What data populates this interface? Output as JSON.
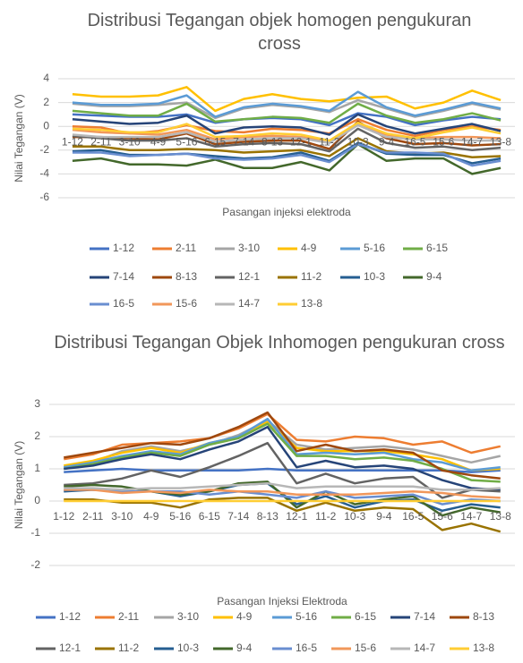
{
  "chart_data": [
    {
      "type": "line",
      "title": "Distribusi Tegangan objek homogen pengukuran cross",
      "xlabel": "Pasangan injeksi elektroda",
      "ylabel": "Nilai Tegangan (V)",
      "grid": true,
      "categories": [
        "1-12",
        "2-11",
        "3-10",
        "4-9",
        "5-16",
        "6-15",
        "7-14",
        "8-13",
        "12-1",
        "11-2",
        "10-3",
        "9-4",
        "16-5",
        "15-6",
        "14-7",
        "13-8"
      ],
      "ylim": [
        -6,
        4
      ],
      "yticks": [
        -6,
        -4,
        -2,
        0,
        2,
        4
      ],
      "series": [
        {
          "name": "1-12",
          "color": "#4472c4",
          "values": [
            1.0,
            0.9,
            0.8,
            0.8,
            1.0,
            0.3,
            0.6,
            0.7,
            0.6,
            0.1,
            1.1,
            0.8,
            0.1,
            0.5,
            0.8,
            0.6
          ]
        },
        {
          "name": "2-11",
          "color": "#ed7d31",
          "values": [
            0.0,
            -0.1,
            -0.6,
            -0.4,
            0.1,
            -0.4,
            -0.5,
            -0.2,
            -0.3,
            -0.6,
            0.6,
            -0.3,
            -0.8,
            -0.3,
            0.0,
            -0.3
          ]
        },
        {
          "name": "3-10",
          "color": "#a5a5a5",
          "values": [
            1.9,
            1.7,
            1.7,
            1.8,
            2.0,
            0.7,
            1.5,
            1.8,
            1.6,
            1.2,
            2.2,
            1.5,
            0.8,
            1.3,
            1.9,
            1.4
          ]
        },
        {
          "name": "4-9",
          "color": "#ffc000",
          "values": [
            2.7,
            2.5,
            2.5,
            2.6,
            3.3,
            1.3,
            2.3,
            2.7,
            2.3,
            2.1,
            2.4,
            2.5,
            1.5,
            2.0,
            3.0,
            2.2
          ]
        },
        {
          "name": "5-16",
          "color": "#5b9bd5",
          "values": [
            2.0,
            1.8,
            1.8,
            1.9,
            2.6,
            0.8,
            1.6,
            1.9,
            1.7,
            1.3,
            2.9,
            1.6,
            0.9,
            1.4,
            2.0,
            1.5
          ]
        },
        {
          "name": "6-15",
          "color": "#70ad47",
          "values": [
            1.3,
            1.1,
            0.9,
            0.9,
            1.9,
            0.4,
            0.6,
            0.8,
            0.7,
            0.3,
            1.9,
            0.9,
            0.3,
            0.6,
            1.1,
            0.5
          ]
        },
        {
          "name": "7-14",
          "color": "#264478",
          "values": [
            0.6,
            0.4,
            0.2,
            0.3,
            0.9,
            -0.6,
            -0.1,
            0.0,
            -0.1,
            -0.7,
            1.0,
            0.0,
            -0.6,
            -0.2,
            0.2,
            -0.4
          ]
        },
        {
          "name": "8-13",
          "color": "#9e480e",
          "values": [
            -0.9,
            -0.9,
            -1.0,
            -1.1,
            -0.6,
            -1.5,
            -1.3,
            -1.2,
            -1.2,
            -1.9,
            0.4,
            -1.0,
            -1.5,
            -1.4,
            -1.6,
            -1.5
          ]
        },
        {
          "name": "12-1",
          "color": "#636363",
          "values": [
            -0.8,
            -1.0,
            -1.2,
            -1.2,
            -1.0,
            -1.7,
            -1.5,
            -1.4,
            -1.5,
            -2.1,
            -0.2,
            -1.4,
            -1.8,
            -1.7,
            -2.0,
            -1.8
          ]
        },
        {
          "name": "11-2",
          "color": "#997300",
          "values": [
            -1.7,
            -1.7,
            -2.0,
            -2.0,
            -1.9,
            -2.0,
            -2.2,
            -2.1,
            -2.0,
            -2.5,
            -1.0,
            -2.1,
            -2.3,
            -2.2,
            -2.6,
            -2.5
          ]
        },
        {
          "name": "10-3",
          "color": "#255e91",
          "values": [
            -2.1,
            -2.0,
            -2.4,
            -2.4,
            -2.3,
            -2.5,
            -2.7,
            -2.6,
            -2.2,
            -2.9,
            -1.4,
            -2.3,
            -2.4,
            -2.4,
            -3.1,
            -2.7
          ]
        },
        {
          "name": "9-4",
          "color": "#43682b",
          "values": [
            -2.9,
            -2.7,
            -3.2,
            -3.2,
            -3.3,
            -2.8,
            -3.5,
            -3.5,
            -3.0,
            -3.7,
            -1.5,
            -2.9,
            -2.7,
            -2.7,
            -4.0,
            -3.5
          ]
        },
        {
          "name": "16-5",
          "color": "#698ed0",
          "values": [
            -2.2,
            -2.2,
            -2.5,
            -2.4,
            -2.3,
            -2.7,
            -2.8,
            -2.7,
            -2.4,
            -3.0,
            -1.5,
            -2.2,
            -2.2,
            -2.3,
            -3.3,
            -2.9
          ]
        },
        {
          "name": "15-6",
          "color": "#f1975a",
          "values": [
            -0.3,
            -0.5,
            -0.6,
            -0.7,
            -0.3,
            -1.1,
            -0.9,
            -0.8,
            -0.9,
            -1.2,
            0.2,
            -0.7,
            -1.0,
            -0.9,
            -0.9,
            -1.0
          ]
        },
        {
          "name": "14-7",
          "color": "#b7b7b7",
          "values": [
            -0.7,
            -0.9,
            -0.9,
            -0.9,
            -0.5,
            -1.3,
            -1.1,
            -1.0,
            -1.0,
            -1.4,
            0.1,
            -0.9,
            -1.1,
            -1.1,
            -1.2,
            -1.2
          ]
        },
        {
          "name": "13-8",
          "color": "#ffcd33",
          "values": [
            -0.2,
            -0.3,
            -0.5,
            -0.5,
            0.2,
            -0.9,
            -0.8,
            -0.6,
            -0.7,
            -1.2,
            0.3,
            -0.6,
            -1.0,
            -0.5,
            -0.1,
            -0.6
          ]
        }
      ]
    },
    {
      "type": "line",
      "title": "Distribusi Tegangan Objek Inhomogen pengukuran cross",
      "xlabel": "Pasangan Injeksi Elektroda",
      "ylabel": "Nilai Tegangan (V)",
      "grid": true,
      "categories": [
        "1-12",
        "2-11",
        "3-10",
        "4-9",
        "5-16",
        "6-15",
        "7-14",
        "8-13",
        "12-1",
        "11-2",
        "10-3",
        "9-4",
        "16-5",
        "15-6",
        "14-7",
        "13-8"
      ],
      "ylim": [
        -2,
        3
      ],
      "yticks": [
        -2,
        -1,
        0,
        1,
        2,
        3
      ],
      "series": [
        {
          "name": "1-12",
          "color": "#4472c4",
          "values": [
            0.9,
            0.95,
            1.0,
            0.95,
            0.95,
            0.95,
            0.95,
            1.0,
            0.95,
            0.95,
            0.95,
            0.95,
            0.95,
            0.95,
            0.9,
            0.95
          ]
        },
        {
          "name": "2-11",
          "color": "#ed7d31",
          "values": [
            1.3,
            1.45,
            1.75,
            1.8,
            1.85,
            1.95,
            2.25,
            2.7,
            1.9,
            1.85,
            2.0,
            1.95,
            1.75,
            1.85,
            1.5,
            1.7
          ]
        },
        {
          "name": "3-10",
          "color": "#a5a5a5",
          "values": [
            1.05,
            1.2,
            1.55,
            1.7,
            1.55,
            1.75,
            2.05,
            2.5,
            1.75,
            1.6,
            1.65,
            1.7,
            1.6,
            1.4,
            1.2,
            1.4
          ]
        },
        {
          "name": "4-9",
          "color": "#ffc000",
          "values": [
            1.1,
            1.25,
            1.5,
            1.65,
            1.5,
            1.8,
            2.0,
            2.45,
            1.65,
            1.55,
            1.55,
            1.55,
            1.45,
            1.3,
            0.95,
            1.0
          ]
        },
        {
          "name": "5-16",
          "color": "#5b9bd5",
          "values": [
            1.05,
            1.2,
            1.4,
            1.55,
            1.45,
            1.8,
            2.0,
            2.55,
            1.45,
            1.5,
            1.45,
            1.5,
            1.3,
            1.2,
            0.95,
            1.05
          ]
        },
        {
          "name": "6-15",
          "color": "#70ad47",
          "values": [
            1.0,
            1.15,
            1.35,
            1.5,
            1.4,
            1.75,
            1.95,
            2.4,
            1.4,
            1.4,
            1.3,
            1.35,
            1.25,
            1.0,
            0.65,
            0.6
          ]
        },
        {
          "name": "7-14",
          "color": "#264478",
          "values": [
            1.0,
            1.1,
            1.3,
            1.45,
            1.3,
            1.6,
            1.85,
            2.3,
            1.05,
            1.25,
            1.05,
            1.1,
            1.0,
            0.65,
            0.4,
            0.35
          ]
        },
        {
          "name": "8-13",
          "color": "#9e480e",
          "values": [
            1.35,
            1.5,
            1.65,
            1.8,
            1.75,
            1.95,
            2.3,
            2.75,
            1.55,
            1.75,
            1.55,
            1.6,
            1.5,
            0.95,
            0.8,
            0.7
          ]
        },
        {
          "name": "12-1",
          "color": "#636363",
          "values": [
            0.5,
            0.55,
            0.7,
            0.95,
            0.75,
            1.05,
            1.4,
            1.8,
            0.55,
            0.85,
            0.55,
            0.7,
            0.75,
            0.1,
            0.35,
            0.3
          ]
        },
        {
          "name": "11-2",
          "color": "#997300",
          "values": [
            0.05,
            0.05,
            -0.05,
            -0.05,
            -0.2,
            0.05,
            0.1,
            0.1,
            -0.3,
            -0.05,
            -0.3,
            -0.2,
            -0.25,
            -0.9,
            -0.7,
            -0.95
          ]
        },
        {
          "name": "10-3",
          "color": "#255e91",
          "values": [
            0.3,
            0.35,
            0.3,
            0.3,
            0.15,
            0.3,
            0.5,
            0.55,
            -0.1,
            0.15,
            -0.2,
            0.0,
            0.05,
            -0.3,
            -0.1,
            -0.2
          ]
        },
        {
          "name": "9-4",
          "color": "#43682b",
          "values": [
            0.45,
            0.5,
            0.45,
            0.3,
            0.2,
            0.3,
            0.55,
            0.6,
            -0.2,
            0.3,
            -0.1,
            0.05,
            0.15,
            -0.45,
            -0.2,
            -0.35
          ]
        },
        {
          "name": "16-5",
          "color": "#698ed0",
          "values": [
            0.35,
            0.35,
            0.3,
            0.3,
            0.3,
            0.2,
            0.3,
            0.2,
            0.1,
            0.3,
            0.1,
            0.15,
            0.2,
            -0.1,
            0.05,
            0.0
          ]
        },
        {
          "name": "15-6",
          "color": "#f1975a",
          "values": [
            0.35,
            0.35,
            0.25,
            0.3,
            0.25,
            0.35,
            0.3,
            0.3,
            0.2,
            0.2,
            0.2,
            0.25,
            0.3,
            0.25,
            0.15,
            0.1
          ]
        },
        {
          "name": "14-7",
          "color": "#b7b7b7",
          "values": [
            0.4,
            0.4,
            0.35,
            0.4,
            0.4,
            0.45,
            0.5,
            0.55,
            0.4,
            0.45,
            0.45,
            0.45,
            0.45,
            0.35,
            0.35,
            0.4
          ]
        },
        {
          "name": "13-8",
          "color": "#ffcd33",
          "values": [
            0.0,
            0.0,
            0.0,
            0.0,
            0.0,
            0.0,
            0.0,
            0.0,
            0.0,
            0.0,
            0.0,
            0.0,
            0.0,
            0.0,
            0.0,
            0.0
          ]
        }
      ]
    }
  ]
}
